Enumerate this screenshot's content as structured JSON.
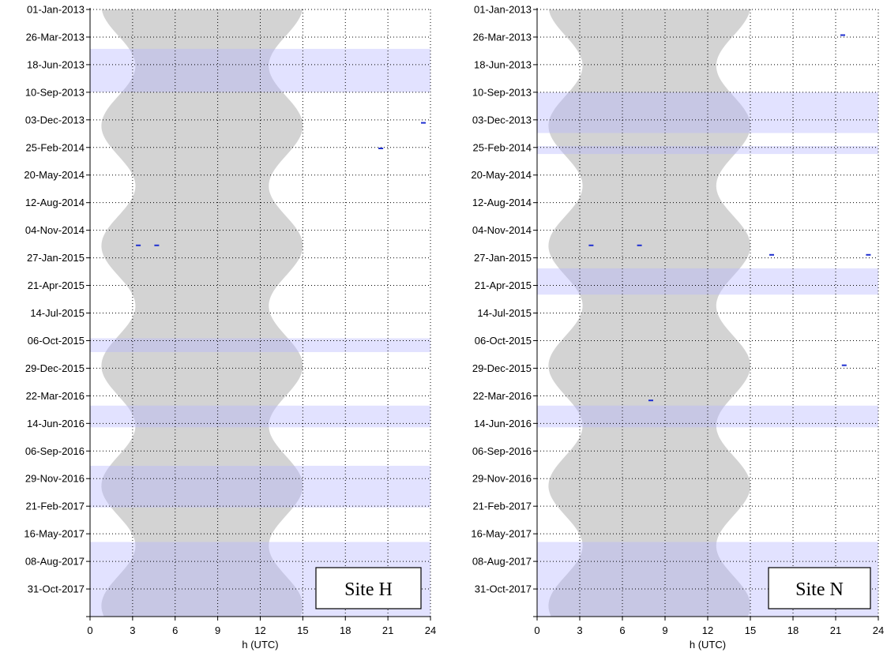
{
  "chart_data": [
    {
      "type": "area",
      "site_label": "Site H",
      "xlabel": "h (UTC)",
      "xlim": [
        0,
        24
      ],
      "x_ticks": [
        "0",
        "3",
        "6",
        "9",
        "12",
        "15",
        "18",
        "21",
        "24"
      ],
      "y_ticks": [
        "01-Jan-2013",
        "26-Mar-2013",
        "18-Jun-2013",
        "10-Sep-2013",
        "03-Dec-2013",
        "25-Feb-2014",
        "20-May-2014",
        "12-Aug-2014",
        "04-Nov-2014",
        "27-Jan-2015",
        "21-Apr-2015",
        "14-Jul-2015",
        "06-Oct-2015",
        "29-Dec-2015",
        "22-Mar-2016",
        "14-Jun-2016",
        "06-Sep-2016",
        "29-Nov-2016",
        "21-Feb-2017",
        "16-May-2017",
        "08-Aug-2017",
        "31-Oct-2017"
      ],
      "ylim": [
        "2013-01-01",
        "2018-01-23"
      ],
      "y_direction": "downward",
      "grid": true,
      "grey_band_colour": "#d3d3d3",
      "highlight_colour": "#b4b4ff",
      "highlight_periods": [
        [
          "2013-05-01",
          "2013-09-10"
        ],
        [
          "2015-09-29",
          "2015-11-10"
        ],
        [
          "2016-04-21",
          "2016-06-26"
        ],
        [
          "2016-10-21",
          "2017-02-25"
        ],
        [
          "2017-06-10",
          "2018-01-23"
        ]
      ],
      "marks": [
        {
          "date": "2014-12-20",
          "h": 3.4
        },
        {
          "date": "2014-12-20",
          "h": 4.7
        },
        {
          "date": "2014-02-28",
          "h": 20.5
        },
        {
          "date": "2013-12-12",
          "h": 23.5
        }
      ]
    },
    {
      "type": "area",
      "site_label": "Site N",
      "xlabel": "h (UTC)",
      "xlim": [
        0,
        24
      ],
      "x_ticks": [
        "0",
        "3",
        "6",
        "9",
        "12",
        "15",
        "18",
        "21",
        "24"
      ],
      "y_ticks": [
        "01-Jan-2013",
        "26-Mar-2013",
        "18-Jun-2013",
        "10-Sep-2013",
        "03-Dec-2013",
        "25-Feb-2014",
        "20-May-2014",
        "12-Aug-2014",
        "04-Nov-2014",
        "27-Jan-2015",
        "21-Apr-2015",
        "14-Jul-2015",
        "06-Oct-2015",
        "29-Dec-2015",
        "22-Mar-2016",
        "14-Jun-2016",
        "06-Sep-2016",
        "29-Nov-2016",
        "21-Feb-2017",
        "16-May-2017",
        "08-Aug-2017",
        "31-Oct-2017"
      ],
      "ylim": [
        "2013-01-01",
        "2018-01-23"
      ],
      "y_direction": "downward",
      "grid": true,
      "grey_band_colour": "#d3d3d3",
      "highlight_colour": "#b4b4ff",
      "highlight_periods": [
        [
          "2013-09-10",
          "2014-01-12"
        ],
        [
          "2014-02-21",
          "2014-03-17"
        ],
        [
          "2015-02-28",
          "2015-05-19"
        ],
        [
          "2016-04-21",
          "2016-06-26"
        ],
        [
          "2017-06-10",
          "2018-01-23"
        ]
      ],
      "marks": [
        {
          "date": "2014-12-20",
          "h": 3.8
        },
        {
          "date": "2014-12-20",
          "h": 7.2
        },
        {
          "date": "2015-01-18",
          "h": 16.5
        },
        {
          "date": "2015-01-18",
          "h": 23.3
        },
        {
          "date": "2016-04-05",
          "h": 8.0
        },
        {
          "date": "2015-12-20",
          "h": 21.6
        },
        {
          "date": "2013-03-20",
          "h": 21.5
        }
      ]
    }
  ]
}
